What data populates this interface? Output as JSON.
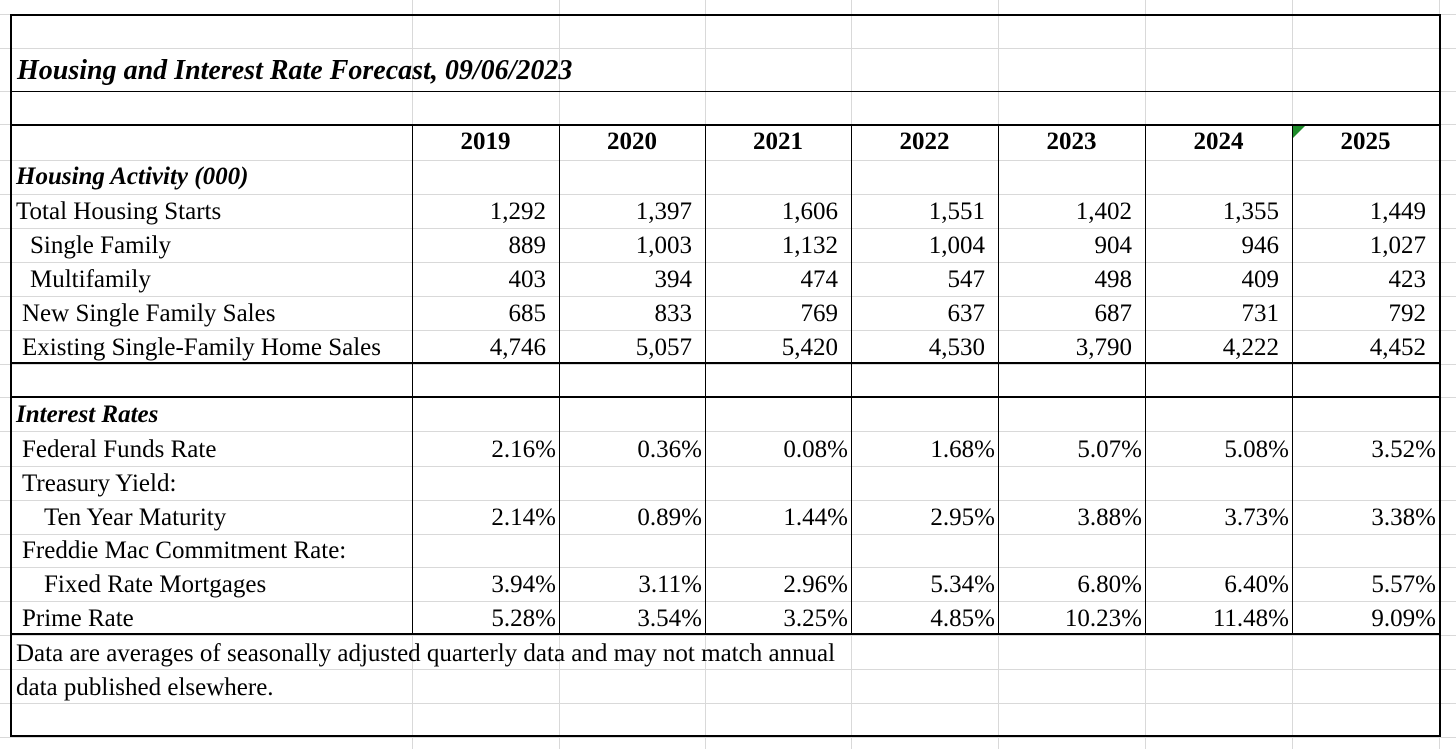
{
  "title": "Housing and Interest Rate Forecast, 09/06/2023",
  "years": [
    "2019",
    "2020",
    "2021",
    "2022",
    "2023",
    "2024",
    "2025"
  ],
  "housing": {
    "header": "Housing Activity (000)",
    "rows": [
      {
        "label": "Total Housing Starts",
        "values": [
          "1,292",
          "1,397",
          "1,606",
          "1,551",
          "1,402",
          "1,355",
          "1,449"
        ]
      },
      {
        "label": "Single Family",
        "values": [
          "889",
          "1,003",
          "1,132",
          "1,004",
          "904",
          "946",
          "1,027"
        ]
      },
      {
        "label": "Multifamily",
        "values": [
          "403",
          "394",
          "474",
          "547",
          "498",
          "409",
          "423"
        ]
      },
      {
        "label": "New Single Family Sales",
        "values": [
          "685",
          "833",
          "769",
          "637",
          "687",
          "731",
          "792"
        ]
      },
      {
        "label": "Existing Single-Family Home Sales",
        "values": [
          "4,746",
          "5,057",
          "5,420",
          "4,530",
          "3,790",
          "4,222",
          "4,452"
        ]
      }
    ]
  },
  "rates": {
    "header": "Interest Rates",
    "fed_funds": {
      "label": "Federal Funds Rate",
      "values": [
        "2.16%",
        "0.36%",
        "0.08%",
        "1.68%",
        "5.07%",
        "5.08%",
        "3.52%"
      ]
    },
    "treasury_label": "Treasury Yield:",
    "ten_year": {
      "label": "Ten Year Maturity",
      "values": [
        "2.14%",
        "0.89%",
        "1.44%",
        "2.95%",
        "3.88%",
        "3.73%",
        "3.38%"
      ]
    },
    "freddie_label": "Freddie Mac Commitment Rate:",
    "fixed": {
      "label": "Fixed Rate Mortgages",
      "values": [
        "3.94%",
        "3.11%",
        "2.96%",
        "5.34%",
        "6.80%",
        "6.40%",
        "5.57%"
      ]
    },
    "prime": {
      "label": "Prime Rate",
      "values": [
        "5.28%",
        "3.54%",
        "3.25%",
        "4.85%",
        "10.23%",
        "11.48%",
        "9.09%"
      ]
    }
  },
  "footnote": {
    "line1": "Data are averages of seasonally adjusted quarterly data and may not match annual",
    "line2": "data published elsewhere."
  }
}
